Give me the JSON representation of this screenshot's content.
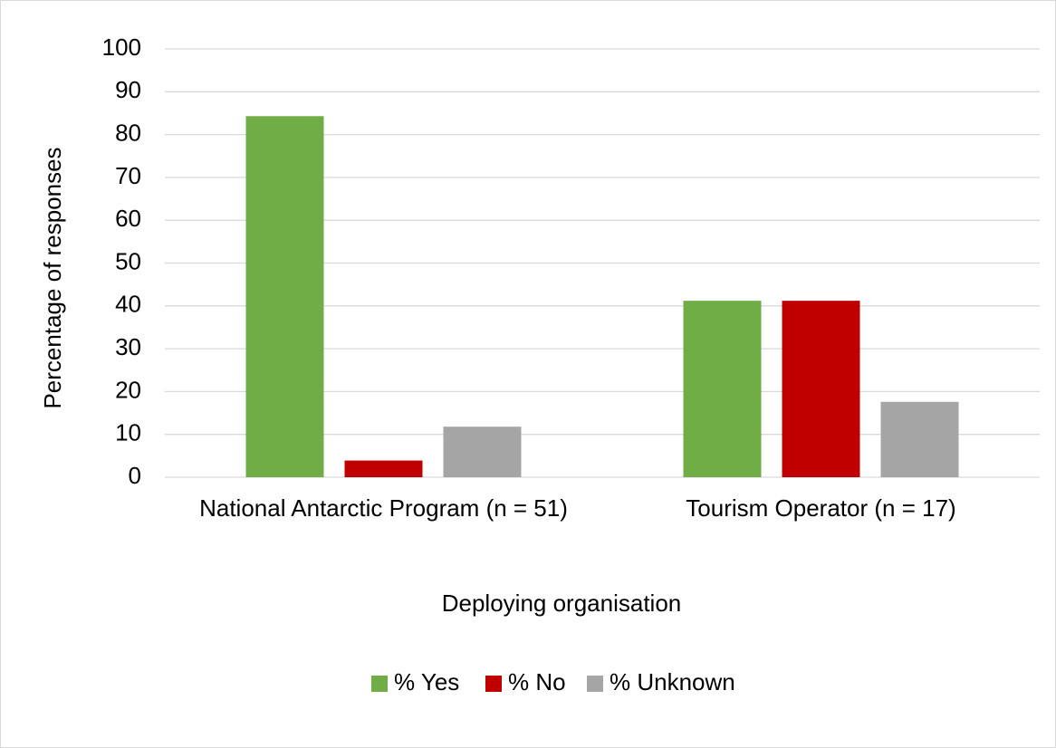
{
  "chart_data": {
    "type": "bar",
    "categories": [
      "National Antarctic Program (n = 51)",
      "Tourism Operator (n = 17)"
    ],
    "series": [
      {
        "name": "% Yes",
        "color": "#70ad47",
        "values": [
          84.3,
          41.2
        ]
      },
      {
        "name": "% No",
        "color": "#c00000",
        "values": [
          3.9,
          41.2
        ]
      },
      {
        "name": "% Unknown",
        "color": "#a5a5a5",
        "values": [
          11.8,
          17.6
        ]
      }
    ],
    "x_label": "Deploying organisation",
    "y_label": "Percentage of responses",
    "ylim": [
      0,
      100
    ],
    "yticks": [
      0,
      10,
      20,
      30,
      40,
      50,
      60,
      70,
      80,
      90,
      100
    ],
    "grid": true,
    "legend": "bottom"
  }
}
